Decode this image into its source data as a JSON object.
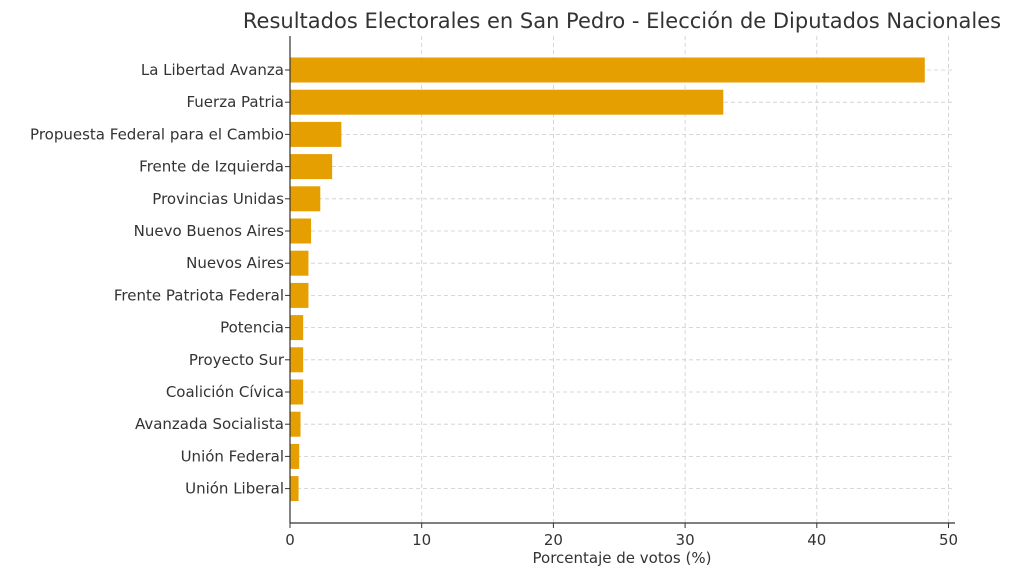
{
  "chart_data": {
    "type": "bar",
    "orientation": "horizontal",
    "title": "Resultados Electorales en San Pedro - Elección de Diputados Nacionales",
    "xlabel": "Porcentaje de votos (%)",
    "ylabel": "",
    "xlim": [
      0,
      50.5
    ],
    "xticks": [
      0,
      10,
      20,
      30,
      40,
      50
    ],
    "grid": true,
    "bar_color": "#E69F00",
    "categories": [
      "La Libertad Avanza",
      "Fuerza Patria",
      "Propuesta Federal para el Cambio",
      "Frente de Izquierda",
      "Provincias Unidas",
      "Nuevo Buenos Aires",
      "Nuevos Aires",
      "Frente Patriota Federal",
      "Potencia",
      "Proyecto Sur",
      "Coalición Cívica",
      "Avanzada Socialista",
      "Unión Federal",
      "Unión Liberal"
    ],
    "values": [
      48.2,
      32.9,
      3.9,
      3.2,
      2.3,
      1.6,
      1.4,
      1.4,
      1.0,
      1.0,
      1.0,
      0.8,
      0.7,
      0.65
    ]
  }
}
